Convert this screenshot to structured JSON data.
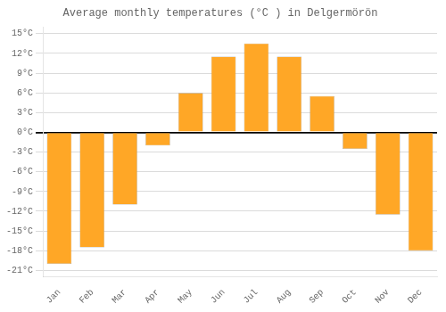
{
  "chart_data": {
    "type": "bar",
    "title": "Average monthly temperatures (°C ) in Delgermörön",
    "categories": [
      "Jan",
      "Feb",
      "Mar",
      "Apr",
      "May",
      "Jun",
      "Jul",
      "Aug",
      "Sep",
      "Oct",
      "Nov",
      "Dec"
    ],
    "values": [
      -20,
      -17.5,
      -11,
      -2,
      6,
      11.5,
      13.5,
      11.5,
      5.5,
      -2.5,
      -12.5,
      -18
    ],
    "color": "#FFA726",
    "ylim": [
      -22,
      16
    ],
    "yticks": [
      {
        "value": -21,
        "label": "-21°C"
      },
      {
        "value": -18,
        "label": "-18°C"
      },
      {
        "value": -15,
        "label": "-15°C"
      },
      {
        "value": -12,
        "label": "-12°C"
      },
      {
        "value": -9,
        "label": "-9°C"
      },
      {
        "value": -6,
        "label": "-6°C"
      },
      {
        "value": -3,
        "label": "-3°C"
      },
      {
        "value": 0,
        "label": "0°C"
      },
      {
        "value": 3,
        "label": "3°C"
      },
      {
        "value": 6,
        "label": "6°C"
      },
      {
        "value": 9,
        "label": "9°C"
      },
      {
        "value": 12,
        "label": "12°C"
      },
      {
        "value": 15,
        "label": "15°C"
      }
    ],
    "grid": true
  }
}
